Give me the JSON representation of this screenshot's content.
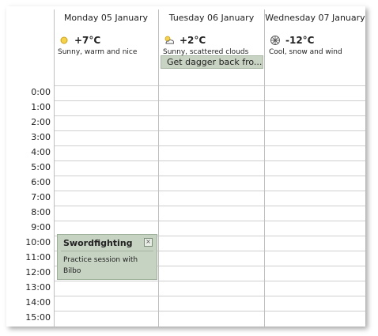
{
  "days": [
    {
      "label": "Monday 05 January",
      "temp": "+7°C",
      "desc": "Sunny, warm and nice",
      "icon": "sun-icon"
    },
    {
      "label": "Tuesday 06 January",
      "temp": "+2°C",
      "desc": "Sunny, scattered clouds",
      "icon": "sun-cloud-icon"
    },
    {
      "label": "Wednesday 07 January",
      "temp": "-12°C",
      "desc": "Cool, snow and wind",
      "icon": "snowflake-icon"
    }
  ],
  "allday_event": {
    "label": "Get dagger back fro..."
  },
  "hours": [
    "0:00",
    "1:00",
    "2:00",
    "3:00",
    "4:00",
    "5:00",
    "6:00",
    "7:00",
    "8:00",
    "9:00",
    "10:00",
    "11:00",
    "12:00",
    "13:00",
    "14:00",
    "15:00"
  ],
  "event": {
    "title": "Swordfighting",
    "body": "Practice session with Bilbo",
    "close": "×"
  },
  "colors": {
    "event_bg": "#c6d2c2",
    "allday_bg": "#c9d3c4",
    "grid_line": "#cfcfcf"
  }
}
